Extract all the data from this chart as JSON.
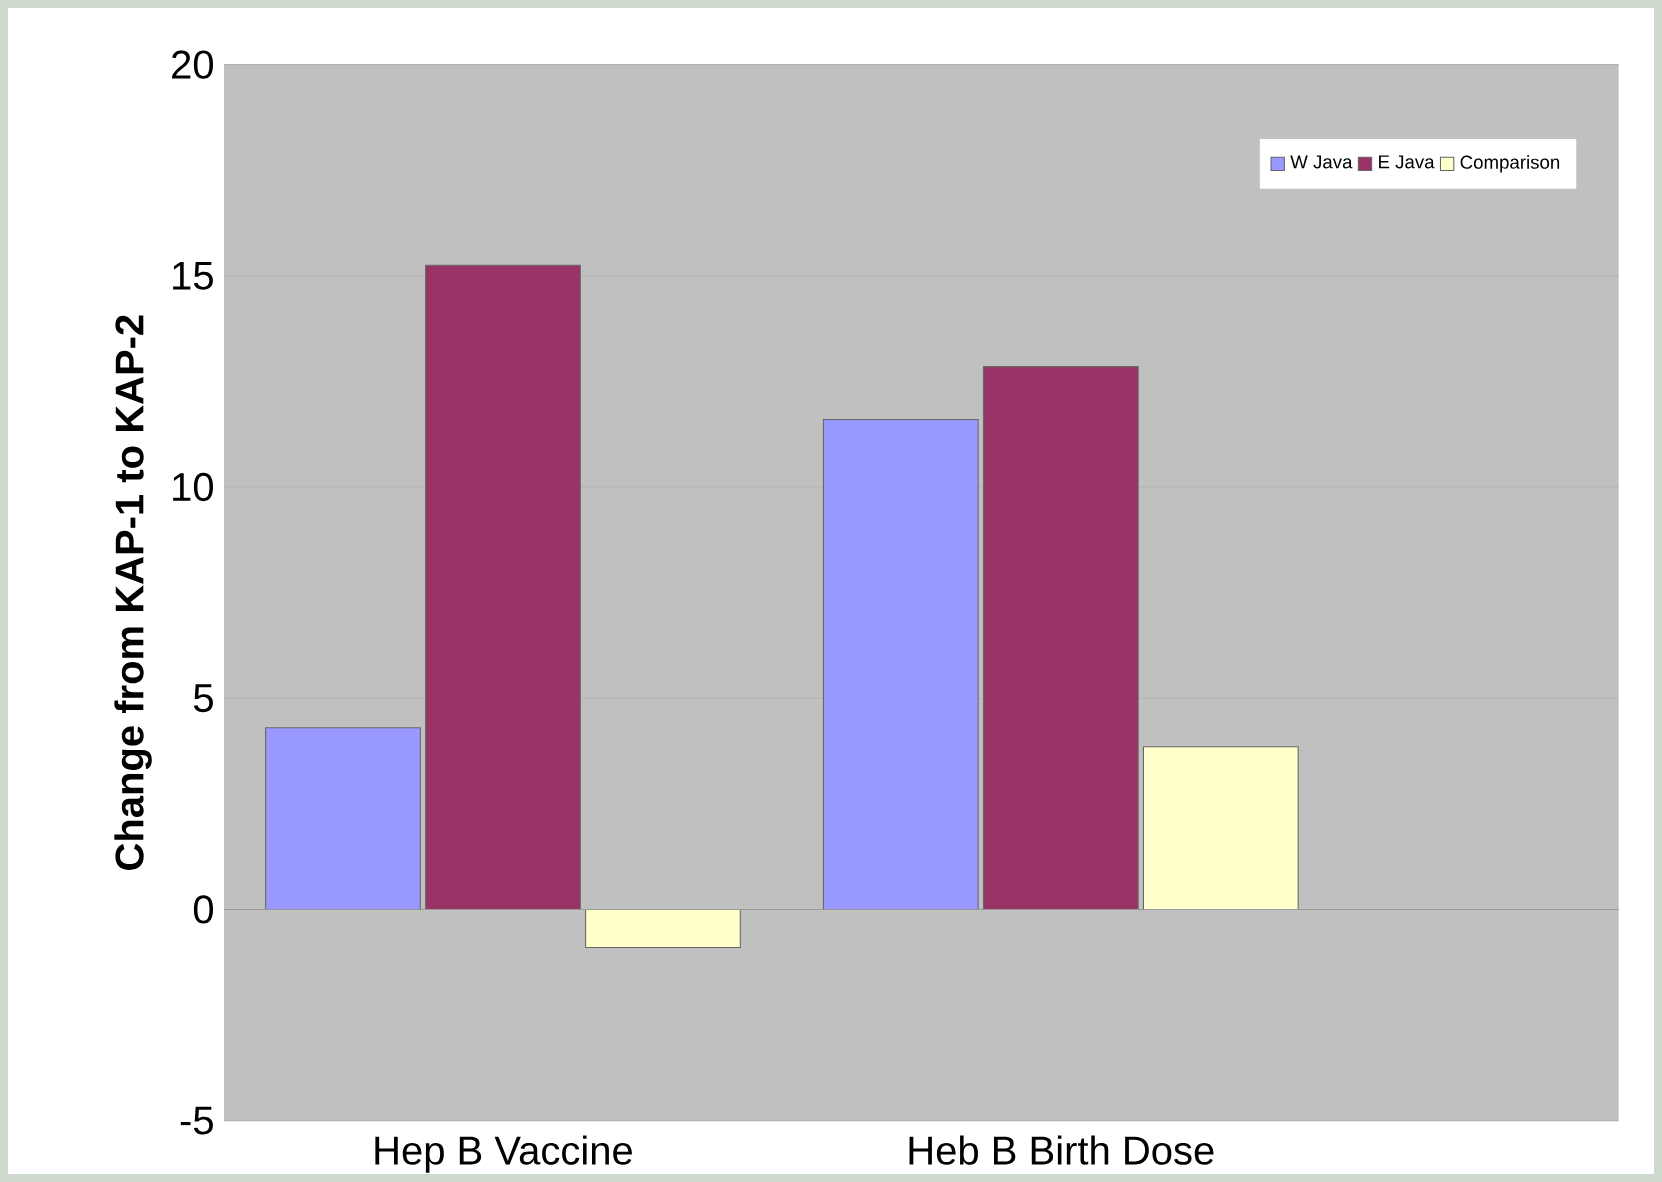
{
  "chart_data": {
    "type": "bar",
    "ylabel": "Change from KAP-1 to KAP-2",
    "categories": [
      "Hep B Vaccine",
      "Heb B Birth Dose"
    ],
    "series": [
      {
        "name": "W Java",
        "color": "#9999ff",
        "values": [
          4.3,
          11.6
        ]
      },
      {
        "name": "E Java",
        "color": "#993366",
        "values": [
          15.25,
          12.85
        ]
      },
      {
        "name": "Comparison",
        "color": "#ffffcc",
        "values": [
          -0.9,
          3.85
        ]
      }
    ],
    "ylim": [
      -5,
      20
    ],
    "yticks": [
      -5,
      0,
      5,
      10,
      15,
      20
    ],
    "grid": "y",
    "legend": "top right"
  }
}
